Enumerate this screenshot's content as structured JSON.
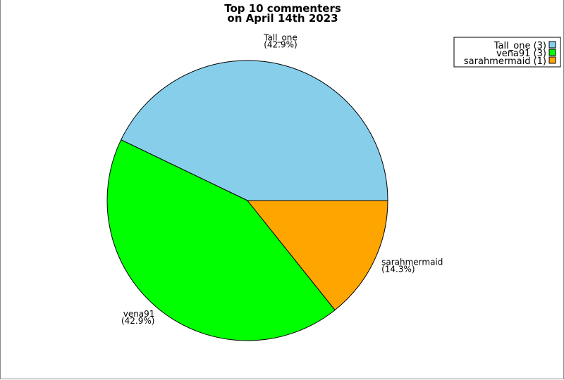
{
  "chart_data": {
    "type": "pie",
    "title": "Top 10 commenters\non April 14th 2023",
    "title_lines": [
      "Top 10 commenters",
      "on April 14th 2023"
    ],
    "slices": [
      {
        "label": "Tall_one",
        "value": 3,
        "percent": "(42.9%)",
        "legend": "Tall_one (3)",
        "color": "#87ceeb"
      },
      {
        "label": "vena91",
        "value": 3,
        "percent": "(42.9%)",
        "legend": "vena91 (3)",
        "color": "#00ff00"
      },
      {
        "label": "sarahmermaid",
        "value": 1,
        "percent": "(14.3%)",
        "legend": "sarahmermaid (1)",
        "color": "#ffa500"
      }
    ],
    "start_angle_deg": 0,
    "direction": "counterclockwise",
    "legend_placement": "top-right"
  }
}
